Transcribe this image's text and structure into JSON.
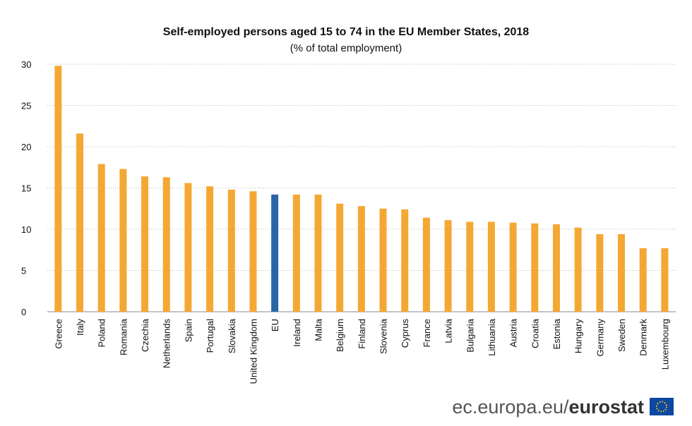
{
  "chart_data": {
    "type": "bar",
    "title": "Self-employed persons aged 15 to 74 in the EU Member States, 2018",
    "subtitle": "(% of total employment)",
    "categories": [
      "Greece",
      "Italy",
      "Poland",
      "Romania",
      "Czechia",
      "Netherlands",
      "Spain",
      "Portugal",
      "Slovakia",
      "United Kingdom",
      "EU",
      "Ireland",
      "Malta",
      "Belgium",
      "Finland",
      "Slovenia",
      "Cyprus",
      "France",
      "Latvia",
      "Bulgaria",
      "Lithuania",
      "Austria",
      "Croatia",
      "Estonia",
      "Hungary",
      "Germany",
      "Sweden",
      "Denmark",
      "Luxembourg"
    ],
    "values": [
      29.8,
      21.6,
      17.9,
      17.3,
      16.4,
      16.3,
      15.6,
      15.2,
      14.8,
      14.6,
      14.2,
      14.2,
      14.2,
      13.1,
      12.8,
      12.5,
      12.4,
      11.4,
      11.1,
      10.9,
      10.9,
      10.8,
      10.7,
      10.6,
      10.2,
      9.4,
      9.4,
      7.7,
      7.7
    ],
    "colors": [
      "#f4a833",
      "#f4a833",
      "#f4a833",
      "#f4a833",
      "#f4a833",
      "#f4a833",
      "#f4a833",
      "#f4a833",
      "#f4a833",
      "#f4a833",
      "#2a64a6",
      "#f4a833",
      "#f4a833",
      "#f4a833",
      "#f4a833",
      "#f4a833",
      "#f4a833",
      "#f4a833",
      "#f4a833",
      "#f4a833",
      "#f4a833",
      "#f4a833",
      "#f4a833",
      "#f4a833",
      "#f4a833",
      "#f4a833",
      "#f4a833",
      "#f4a833",
      "#f4a833"
    ],
    "ylim": [
      0,
      30
    ],
    "yticks": [
      0,
      5,
      10,
      15,
      20,
      25,
      30
    ],
    "grid": true
  },
  "footer": {
    "domain": "ec.europa.eu/",
    "brand": "eurostat"
  }
}
